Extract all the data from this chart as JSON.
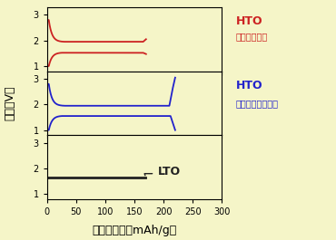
{
  "background_color": "#f5f5c8",
  "xlim": [
    0,
    300
  ],
  "ylim": [
    0.8,
    3.3
  ],
  "yticks": [
    1,
    2,
    3
  ],
  "xticks": [
    0,
    50,
    100,
    150,
    200,
    250,
    300
  ],
  "xlabel": "充放電容量（mAh/g）",
  "ylabel": "電圧（V）",
  "panel1_label": "HTO",
  "panel1_sublabel": "（粒径制御）",
  "panel1_color": "#cc2222",
  "panel2_label": "HTO",
  "panel2_sublabel": "（粒径制御なし）",
  "panel2_color": "#2222cc",
  "panel3_label": "LTO",
  "panel3_color": "#222222",
  "hto1_cap": 170,
  "hto2_cap": 220,
  "lto_cap": 170
}
